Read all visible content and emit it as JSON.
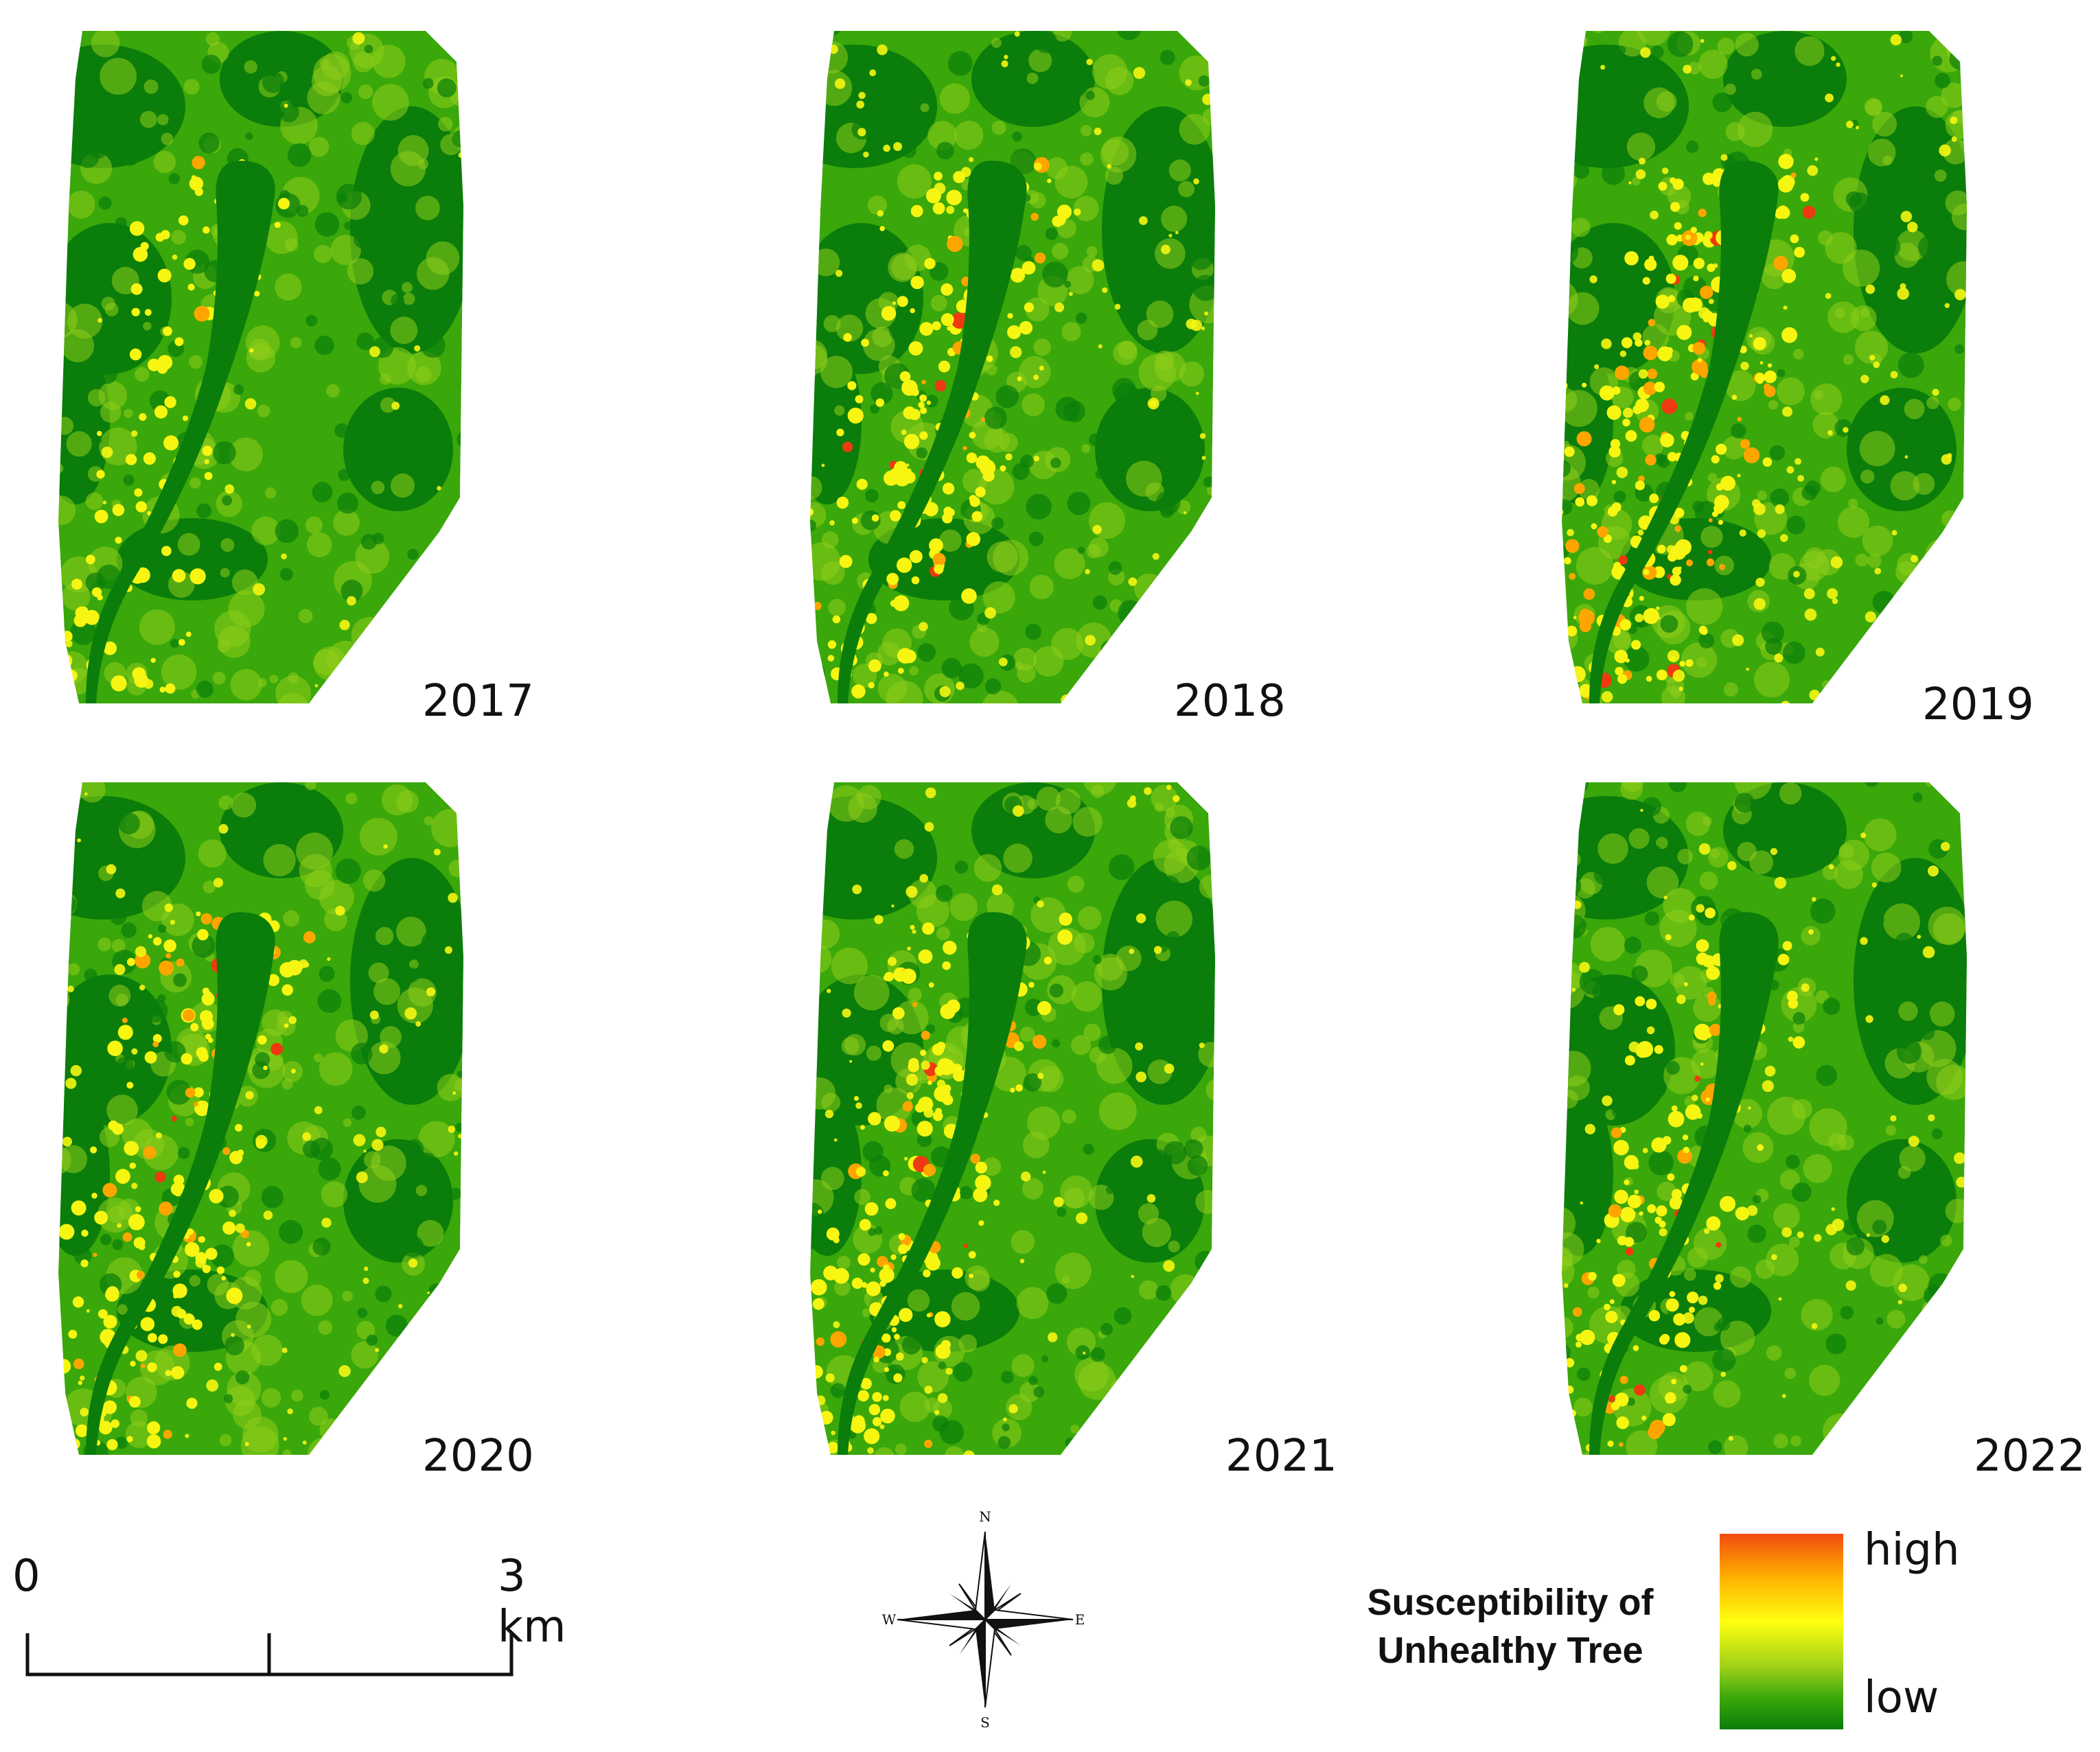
{
  "panels": [
    {
      "year": "2017",
      "level": 0.15
    },
    {
      "year": "2018",
      "level": 0.5
    },
    {
      "year": "2019",
      "level": 0.75
    },
    {
      "year": "2020",
      "level": 0.55
    },
    {
      "year": "2021",
      "level": 0.5
    },
    {
      "year": "2022",
      "level": 0.45
    }
  ],
  "scale": {
    "start_label": "0",
    "end_label": "3 km"
  },
  "compass": {
    "n": "N",
    "s": "S",
    "e": "E",
    "w": "W"
  },
  "legend": {
    "title_line1": "Susceptibility of",
    "title_line2": "Unhealthy Tree",
    "high_label": "high",
    "low_label": "low"
  },
  "colors": {
    "dark_green": "#0a7d0a",
    "green": "#3aa70a",
    "light_green": "#8fce1a",
    "yellow": "#f6f612",
    "orange": "#ffa500",
    "red": "#ee3a10"
  }
}
